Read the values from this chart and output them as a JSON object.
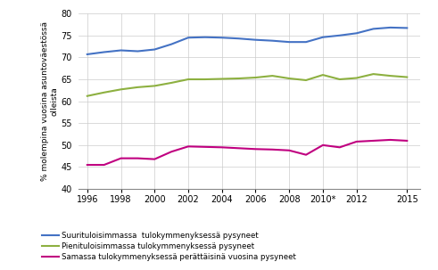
{
  "years": [
    1996,
    1997,
    1998,
    1999,
    2000,
    2001,
    2002,
    2003,
    2004,
    2005,
    2006,
    2007,
    2008,
    2009,
    2010,
    2011,
    2012,
    2013,
    2014,
    2015
  ],
  "xtick_labels": [
    "1996",
    "1998",
    "2000",
    "2002",
    "2004",
    "2006",
    "2008",
    "2010*",
    "2012",
    "2015"
  ],
  "xtick_positions": [
    1996,
    1998,
    2000,
    2002,
    2004,
    2006,
    2008,
    2010,
    2012,
    2015
  ],
  "blue": [
    70.7,
    71.2,
    71.6,
    71.4,
    71.8,
    73.0,
    74.5,
    74.6,
    74.5,
    74.3,
    74.0,
    73.8,
    73.5,
    73.5,
    74.6,
    75.0,
    75.5,
    76.5,
    76.8,
    76.7
  ],
  "green": [
    61.2,
    62.0,
    62.7,
    63.2,
    63.5,
    64.2,
    65.0,
    65.0,
    65.1,
    65.2,
    65.4,
    65.8,
    65.2,
    64.8,
    66.0,
    65.0,
    65.3,
    66.2,
    65.8,
    65.5
  ],
  "magenta": [
    45.5,
    45.5,
    47.0,
    47.0,
    46.8,
    48.5,
    49.7,
    49.6,
    49.5,
    49.3,
    49.1,
    49.0,
    48.8,
    47.8,
    50.0,
    49.5,
    50.8,
    51.0,
    51.2,
    51.0
  ],
  "blue_color": "#4472C4",
  "green_color": "#8DB040",
  "magenta_color": "#C00080",
  "ylabel": "% molempina vuosina asuntoväestössä\nolleista",
  "ylim": [
    40,
    80
  ],
  "yticks": [
    40,
    45,
    50,
    55,
    60,
    65,
    70,
    75,
    80
  ],
  "legend_blue": "Suurituloisimmassa  tulokymmenyksessä pysyneet",
  "legend_green": "Pienituloisimmassa tulokymmenyksessä pysyneet",
  "legend_magenta": "Samassa tulokymmenyksessä perättäisinä vuosina pysyneet",
  "linewidth": 1.5,
  "grid_color": "#cccccc",
  "background_color": "#ffffff"
}
